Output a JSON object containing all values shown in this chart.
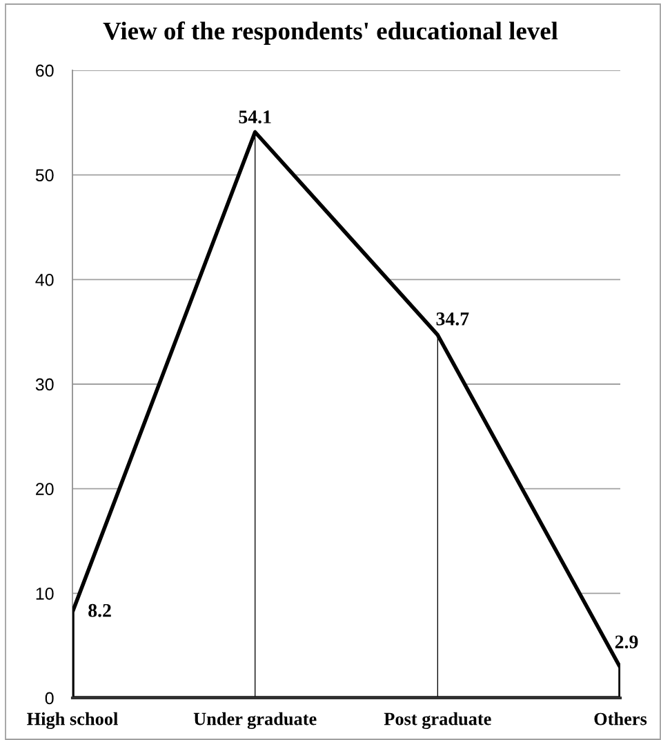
{
  "chart_data": {
    "type": "area",
    "title": "View of the respondents' educational level",
    "categories": [
      "High school",
      "Under graduate",
      "Post graduate",
      "Others"
    ],
    "series": [
      {
        "color": "#ffffff",
        "values": [
          8.2,
          54.1,
          34.7,
          2.9
        ],
        "value_labels": [
          "8.2",
          "54.1",
          "34.7",
          "2.9"
        ]
      },
      {
        "type": "bar",
        "color": "#000000",
        "values": [
          null,
          54.1,
          34.7,
          null
        ]
      }
    ],
    "ylim": [
      0,
      60
    ],
    "yticks": [
      0,
      10,
      20,
      30,
      40,
      50,
      60
    ],
    "grid": "y"
  }
}
